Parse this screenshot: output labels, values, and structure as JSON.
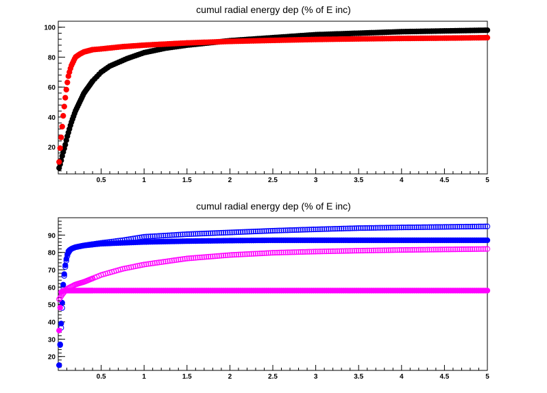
{
  "chart_data": [
    {
      "type": "scatter",
      "title": "cumul radial energy dep (% of E inc)",
      "xlabel": "",
      "ylabel": "",
      "xlim": [
        0,
        5
      ],
      "ylim": [
        2,
        104
      ],
      "x_ticks": [
        0.5,
        1,
        1.5,
        2,
        2.5,
        3,
        3.5,
        4,
        4.5,
        5
      ],
      "x_tick_labels": [
        "0.5",
        "1",
        "1.5",
        "2",
        "2.5",
        "3",
        "3.5",
        "4",
        "4.5",
        "5"
      ],
      "y_ticks": [
        20,
        40,
        60,
        80,
        100
      ],
      "y_tick_labels": [
        "20",
        "40",
        "60",
        "80",
        "100"
      ],
      "grid": false,
      "series": [
        {
          "color": "#000000",
          "marker": "filled-circle",
          "x": [
            0.01,
            0.03,
            0.05,
            0.08,
            0.1,
            0.15,
            0.2,
            0.3,
            0.4,
            0.5,
            0.6,
            0.8,
            1,
            1.25,
            1.5,
            2,
            2.5,
            3,
            3.5,
            4,
            4.5,
            5
          ],
          "y": [
            6,
            10,
            15,
            21,
            26,
            36,
            44,
            56,
            64,
            70,
            74,
            79,
            83,
            86,
            88,
            91,
            93,
            95,
            96,
            97,
            97.5,
            98
          ]
        },
        {
          "color": "#ff0000",
          "marker": "filled-circle",
          "x": [
            0.01,
            0.02,
            0.04,
            0.06,
            0.08,
            0.1,
            0.12,
            0.15,
            0.2,
            0.25,
            0.3,
            0.4,
            0.5,
            0.75,
            1,
            1.5,
            2,
            2.5,
            3,
            3.5,
            4,
            4.5,
            5
          ],
          "y": [
            10,
            18,
            30,
            42,
            52,
            61,
            68,
            74,
            80,
            82,
            83.5,
            85,
            85.5,
            87,
            88,
            89.5,
            90.5,
            91.2,
            91.8,
            92.2,
            92.5,
            92.7,
            93
          ]
        }
      ]
    },
    {
      "type": "scatter",
      "title": "cumul radial energy dep (% of E inc)",
      "xlabel": "",
      "ylabel": "",
      "xlim": [
        0,
        5
      ],
      "ylim": [
        12,
        100
      ],
      "x_ticks": [
        0.5,
        1,
        1.5,
        2,
        2.5,
        3,
        3.5,
        4,
        4.5,
        5
      ],
      "x_tick_labels": [
        "0.5",
        "1",
        "1.5",
        "2",
        "2.5",
        "3",
        "3.5",
        "4",
        "4.5",
        "5"
      ],
      "y_ticks": [
        20,
        30,
        40,
        50,
        60,
        70,
        80,
        90
      ],
      "y_tick_labels": [
        "20",
        "30",
        "40",
        "50",
        "60",
        "70",
        "80",
        "90"
      ],
      "grid": false,
      "series": [
        {
          "color": "#0000ff",
          "marker": "open-circle",
          "x": [
            0.01,
            0.02,
            0.03,
            0.04,
            0.05,
            0.06,
            0.08,
            0.1,
            0.12,
            0.15,
            0.2,
            0.3,
            0.5,
            0.75,
            1,
            1.5,
            2,
            2.5,
            3,
            3.5,
            4,
            4.5,
            5
          ],
          "y": [
            15,
            25,
            33,
            42,
            52,
            62,
            71,
            77,
            80,
            82,
            83,
            84,
            85.5,
            87,
            89,
            90.5,
            91.5,
            92.5,
            93.3,
            94,
            94.4,
            94.7,
            95
          ]
        },
        {
          "color": "#0000ff",
          "marker": "filled-circle",
          "x": [
            0.01,
            0.02,
            0.03,
            0.04,
            0.05,
            0.06,
            0.08,
            0.1,
            0.12,
            0.15,
            0.2,
            0.3,
            0.5,
            1,
            1.5,
            2,
            2.5,
            3,
            3.5,
            4,
            4.5,
            5
          ],
          "y": [
            15,
            25,
            35,
            45,
            55,
            63,
            72,
            78,
            81,
            82,
            83,
            84,
            85,
            86,
            86.5,
            86.8,
            87,
            87,
            87,
            87,
            87,
            87
          ]
        },
        {
          "color": "#ff00ff",
          "marker": "open-circle",
          "x": [
            0.01,
            0.05,
            0.1,
            0.2,
            0.3,
            0.5,
            0.75,
            1,
            1.5,
            2,
            2.5,
            3,
            3.5,
            4,
            4.5,
            5
          ],
          "y": [
            53,
            56,
            59,
            61.5,
            63,
            67,
            70.5,
            73,
            76.5,
            78.5,
            79.8,
            80.5,
            81,
            81.4,
            81.7,
            82
          ]
        },
        {
          "color": "#ff00ff",
          "marker": "filled-circle",
          "x": [
            0.01,
            0.03,
            0.06,
            0.1,
            0.2,
            0.5,
            1,
            2,
            3,
            4,
            5
          ],
          "y": [
            35,
            57,
            58,
            58,
            58,
            58,
            58,
            58,
            58,
            58,
            58
          ]
        }
      ]
    }
  ]
}
